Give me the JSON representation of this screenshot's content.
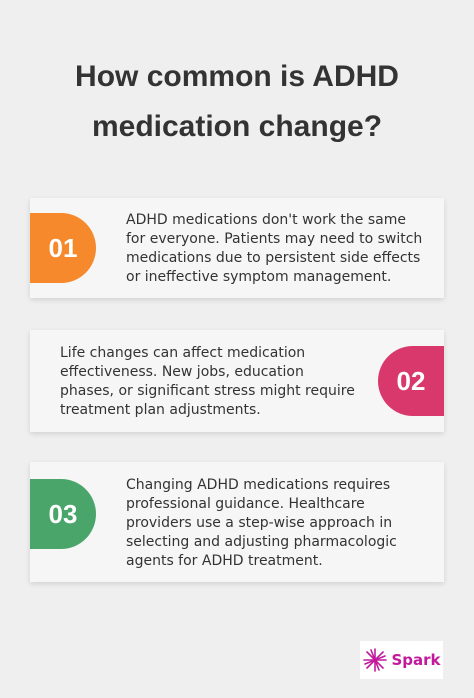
{
  "header": {
    "title": "How common is ADHD medication change?"
  },
  "cards": [
    {
      "number": "01",
      "text": "ADHD medications don't work the same for everyone. Patients may need to switch medications due to persistent side effects or ineffective symptom management."
    },
    {
      "number": "02",
      "text": "Life changes can affect medication effectiveness. New jobs, education phases, or significant stress might require treatment plan adjustments."
    },
    {
      "number": "03",
      "text": "Changing ADHD medications requires professional guidance. Healthcare providers use a step-wise approach in selecting and adjusting pharmacologic agents for ADHD treatment."
    }
  ],
  "logo": {
    "text": "Spark"
  }
}
